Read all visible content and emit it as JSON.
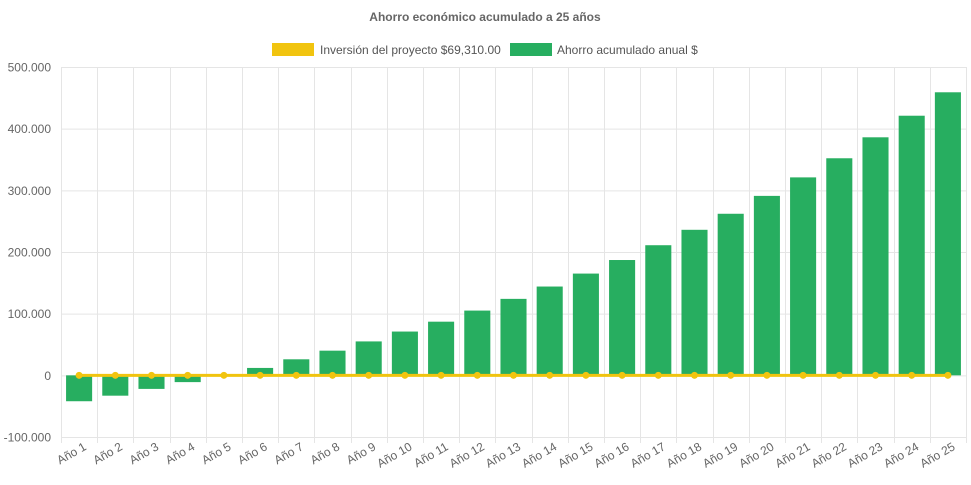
{
  "chart_data": {
    "type": "bar",
    "title": "Ahorro económico acumulado a 25 años",
    "legend_position": "top",
    "grid": true,
    "ylim": [
      -100000,
      500000
    ],
    "yticks": [
      500000,
      400000,
      300000,
      200000,
      100000,
      0,
      -100000
    ],
    "ytick_labels": [
      "500.000",
      "400.000",
      "300.000",
      "200.000",
      "100.000",
      "0",
      "-100.000"
    ],
    "categories": [
      "Año 1",
      "Año 2",
      "Año 3",
      "Año 4",
      "Año 5",
      "Año 6",
      "Año 7",
      "Año 8",
      "Año 9",
      "Año 10",
      "Año 11",
      "Año 12",
      "Año 13",
      "Año 14",
      "Año 15",
      "Año 16",
      "Año 17",
      "Año 18",
      "Año 19",
      "Año 20",
      "Año 21",
      "Año 22",
      "Año 23",
      "Año 24",
      "Año 25"
    ],
    "series": [
      {
        "name": "Inversión del proyecto $69,310.00",
        "type": "line",
        "color": "#f1c40f",
        "values": [
          0,
          0,
          0,
          0,
          0,
          0,
          0,
          0,
          0,
          0,
          0,
          0,
          0,
          0,
          0,
          0,
          0,
          0,
          0,
          0,
          0,
          0,
          0,
          0,
          0
        ]
      },
      {
        "name": "Ahorro acumulado anual $",
        "type": "bar",
        "color": "#27ae60",
        "values": [
          -42000,
          -33000,
          -22000,
          -11000,
          0,
          12000,
          26000,
          40000,
          55000,
          71000,
          87000,
          105000,
          124000,
          144000,
          165000,
          187000,
          211000,
          236000,
          262000,
          291000,
          321000,
          352000,
          386000,
          421000,
          459000
        ]
      }
    ]
  }
}
